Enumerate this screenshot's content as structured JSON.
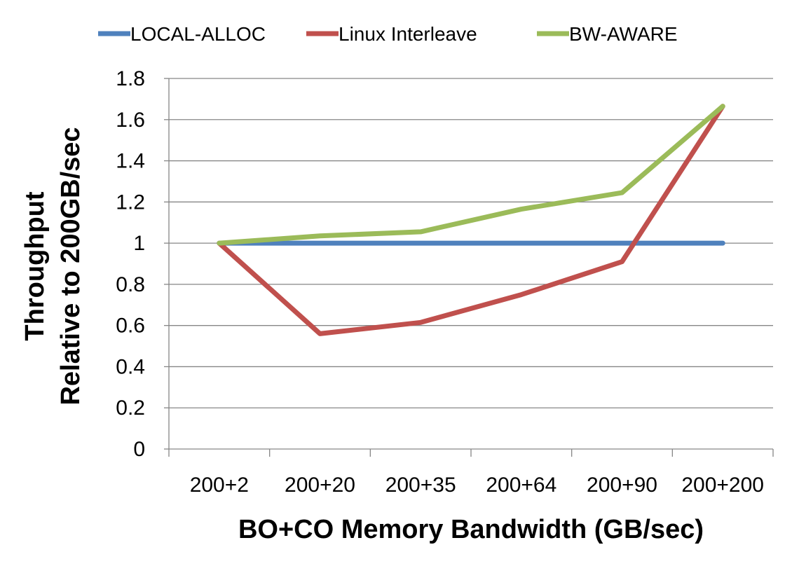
{
  "chart_data": {
    "type": "line",
    "title": "",
    "xlabel": "BO+CO Memory Bandwidth (GB/sec)",
    "ylabel_lines": [
      "Throughput",
      "Relative to 200GB/sec"
    ],
    "categories": [
      "200+2",
      "200+20",
      "200+35",
      "200+64",
      "200+90",
      "200+200"
    ],
    "ylim": [
      0,
      1.8
    ],
    "yticks": [
      "0",
      "0.2",
      "0.4",
      "0.6",
      "0.8",
      "1",
      "1.2",
      "1.4",
      "1.6",
      "1.8"
    ],
    "grid": true,
    "legend_position": "top",
    "series": [
      {
        "name": "LOCAL-ALLOC",
        "color": "#4f81bd",
        "values": [
          1.0,
          1.0,
          1.0,
          1.0,
          1.0,
          1.0
        ]
      },
      {
        "name": "Linux Interleave",
        "color": "#c0504d",
        "values": [
          1.0,
          0.56,
          0.615,
          0.75,
          0.91,
          1.665
        ]
      },
      {
        "name": "BW-AWARE",
        "color": "#9bbb59",
        "values": [
          1.0,
          1.035,
          1.055,
          1.165,
          1.245,
          1.665
        ]
      }
    ]
  }
}
